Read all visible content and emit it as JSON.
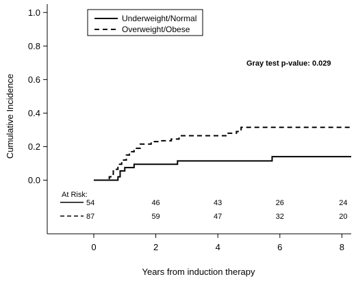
{
  "chart_data": {
    "type": "line",
    "title": "",
    "xlabel": "Years from induction therapy",
    "ylabel": "Cumulative Incidence",
    "xlim": [
      -1.5,
      8.3
    ],
    "ylim": [
      -0.32,
      1.05
    ],
    "xticks": [
      0,
      2,
      4,
      6,
      8
    ],
    "yticks": [
      0.0,
      0.2,
      0.4,
      0.6,
      0.8,
      1.0
    ],
    "xtick_labels": [
      "0",
      "2",
      "4",
      "6",
      "8"
    ],
    "ytick_labels": [
      "0.0",
      "0.2",
      "0.4",
      "0.6",
      "0.8",
      "1.0"
    ],
    "grid": false,
    "legend_position": "top-left",
    "annotation": "Gray test p-value: 0.029",
    "series": [
      {
        "name": "Underweight/Normal",
        "style": "solid",
        "color": "#000000",
        "x": [
          0,
          0.78,
          0.85,
          1.0,
          1.3,
          2.7,
          5.75,
          8.3
        ],
        "y": [
          0.0,
          0.02,
          0.055,
          0.075,
          0.095,
          0.115,
          0.14,
          0.14
        ]
      },
      {
        "name": "Overweight/Obese",
        "style": "dashed",
        "color": "#000000",
        "x": [
          0,
          0.5,
          0.55,
          0.63,
          0.78,
          0.9,
          1.05,
          1.15,
          1.3,
          1.5,
          1.85,
          2.1,
          2.5,
          2.75,
          4.3,
          4.6,
          4.75,
          8.3
        ],
        "y": [
          0.0,
          0.02,
          0.035,
          0.065,
          0.095,
          0.12,
          0.15,
          0.17,
          0.19,
          0.215,
          0.23,
          0.235,
          0.245,
          0.265,
          0.28,
          0.29,
          0.315,
          0.315
        ]
      }
    ],
    "at_risk": {
      "label": "At Risk:",
      "times": [
        0,
        2,
        4,
        6,
        8
      ],
      "rows": [
        {
          "style": "solid",
          "counts": [
            "54",
            "46",
            "43",
            "26",
            "24"
          ]
        },
        {
          "style": "dashed",
          "counts": [
            "87",
            "59",
            "47",
            "32",
            "20"
          ]
        }
      ]
    }
  }
}
